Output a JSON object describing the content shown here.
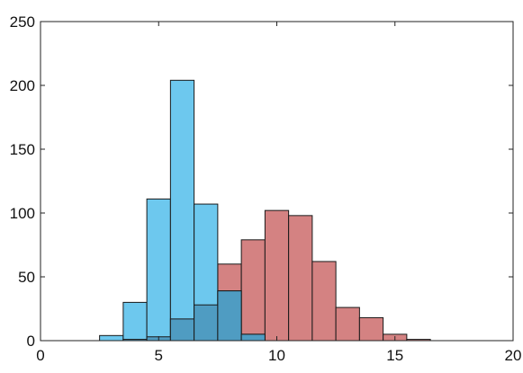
{
  "chart_data": {
    "type": "bar",
    "title": "",
    "xlabel": "",
    "ylabel": "",
    "xlim": [
      0,
      20
    ],
    "ylim": [
      0,
      250
    ],
    "x_ticks": [
      0,
      5,
      10,
      15,
      20
    ],
    "y_ticks": [
      0,
      50,
      100,
      150,
      200,
      250
    ],
    "x_tick_labels": [
      "0",
      "5",
      "10",
      "15",
      "20"
    ],
    "y_tick_labels": [
      "0",
      "50",
      "100",
      "150",
      "200",
      "250"
    ],
    "grid": false,
    "legend": "none",
    "bin_width": 1,
    "series": [
      {
        "color": "#d48282",
        "bins": [
          {
            "x0": 3.5,
            "x1": 4.5,
            "value": 1
          },
          {
            "x0": 4.5,
            "x1": 5.5,
            "value": 3
          },
          {
            "x0": 5.5,
            "x1": 6.5,
            "value": 17
          },
          {
            "x0": 6.5,
            "x1": 7.5,
            "value": 28
          },
          {
            "x0": 7.5,
            "x1": 8.5,
            "value": 60
          },
          {
            "x0": 8.5,
            "x1": 9.5,
            "value": 79
          },
          {
            "x0": 9.5,
            "x1": 10.5,
            "value": 102
          },
          {
            "x0": 10.5,
            "x1": 11.5,
            "value": 98
          },
          {
            "x0": 11.5,
            "x1": 12.5,
            "value": 62
          },
          {
            "x0": 12.5,
            "x1": 13.5,
            "value": 26
          },
          {
            "x0": 13.5,
            "x1": 14.5,
            "value": 18
          },
          {
            "x0": 14.5,
            "x1": 15.5,
            "value": 5
          },
          {
            "x0": 15.5,
            "x1": 16.5,
            "value": 1
          }
        ]
      },
      {
        "color": "#6dc8ee",
        "bins": [
          {
            "x0": 2.5,
            "x1": 3.5,
            "value": 4
          },
          {
            "x0": 3.5,
            "x1": 4.5,
            "value": 30
          },
          {
            "x0": 4.5,
            "x1": 5.5,
            "value": 111
          },
          {
            "x0": 5.5,
            "x1": 6.5,
            "value": 204
          },
          {
            "x0": 6.5,
            "x1": 7.5,
            "value": 107
          },
          {
            "x0": 7.5,
            "x1": 8.5,
            "value": 39
          },
          {
            "x0": 8.5,
            "x1": 9.5,
            "value": 5
          }
        ]
      }
    ],
    "overlap_color": "#4f9cc2"
  }
}
